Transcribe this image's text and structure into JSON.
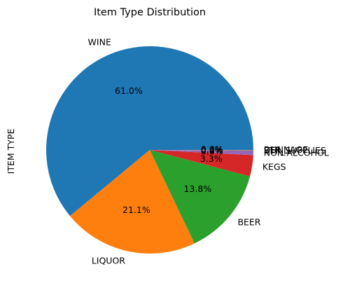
{
  "chart_data": {
    "type": "pie",
    "title": "Item Type Distribution",
    "ylabel": "ITEM TYPE",
    "slices": [
      {
        "label": "WINE",
        "value": 61.0,
        "pct_text": "61.0%",
        "color": "#1f77b4"
      },
      {
        "label": "LIQUOR",
        "value": 21.1,
        "pct_text": "21.1%",
        "color": "#ff7f0e"
      },
      {
        "label": "BEER",
        "value": 13.8,
        "pct_text": "13.8%",
        "color": "#2ca02c"
      },
      {
        "label": "KEGS",
        "value": 3.3,
        "pct_text": "3.3%",
        "color": "#d62728"
      },
      {
        "label": "NON-ALCOHOL",
        "value": 0.6,
        "pct_text": "0.6%",
        "color": "#9467bd"
      },
      {
        "label": "STR_SUPPLIES",
        "value": 0.1,
        "pct_text": "0.1%",
        "color": "#8c564b"
      },
      {
        "label": "REF",
        "value": 0.05,
        "pct_text": "0.0%",
        "color": "#e377c2"
      },
      {
        "label": "DUNNAGE",
        "value": 0.05,
        "pct_text": "0.0%",
        "color": "#7f7f7f"
      }
    ],
    "start_angle_deg": 0,
    "direction": "counterclockwise",
    "legend": "none"
  }
}
